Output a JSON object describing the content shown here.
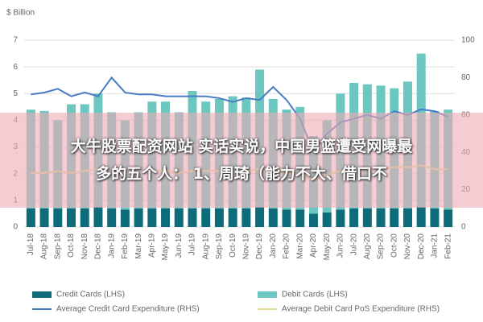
{
  "chart_data": {
    "type": "bar",
    "ylabel": "$ Billion",
    "categories": [
      "Jul-18",
      "Aug-18",
      "Sep-18",
      "Oct-18",
      "Nov-18",
      "Dec-18",
      "Jan-19",
      "Feb-19",
      "Mar-19",
      "Apr-19",
      "May-19",
      "Jun-19",
      "Jul-19",
      "Aug-19",
      "Sep-19",
      "Oct-19",
      "Nov-19",
      "Dec-19",
      "Jan-20",
      "Feb-20",
      "Mar-20",
      "Apr-20",
      "May-20",
      "Jun-20",
      "Jul-20",
      "Aug-20",
      "Sep-20",
      "Oct-20",
      "Nov-20",
      "Dec-20",
      "Jan-21",
      "Feb-21"
    ],
    "series": [
      {
        "name": "Credit Cards (LHS)",
        "color": "#0e6b7a",
        "kind": "bar",
        "values": [
          0.7,
          0.7,
          0.7,
          0.7,
          0.7,
          0.75,
          0.7,
          0.65,
          0.7,
          0.7,
          0.7,
          0.7,
          0.7,
          0.7,
          0.7,
          0.7,
          0.7,
          0.75,
          0.7,
          0.65,
          0.65,
          0.5,
          0.55,
          0.65,
          0.7,
          0.7,
          0.7,
          0.7,
          0.7,
          0.75,
          0.7,
          0.65
        ]
      },
      {
        "name": "Debit Cards (LHS)",
        "color": "#6cc7c1",
        "kind": "bar",
        "values": [
          3.7,
          3.65,
          3.3,
          3.9,
          3.9,
          4.25,
          3.6,
          3.35,
          3.6,
          4.0,
          4.0,
          3.6,
          4.4,
          4.0,
          4.1,
          4.2,
          4.15,
          5.15,
          4.1,
          3.75,
          3.85,
          2.9,
          3.45,
          4.35,
          4.7,
          4.65,
          4.6,
          4.5,
          4.75,
          5.75,
          3.65,
          3.75
        ]
      },
      {
        "name": "Average Credit Card Expenditure (RHS)",
        "color": "#4a7cc4",
        "kind": "line",
        "axis": "y2",
        "values": [
          71,
          72,
          74,
          70,
          72,
          70,
          80,
          72,
          71,
          71,
          70,
          70,
          70,
          70,
          69,
          67,
          69,
          68,
          75,
          68,
          58,
          40,
          50,
          56,
          58,
          60,
          58,
          62,
          60,
          63,
          62,
          59
        ]
      },
      {
        "name": "Average Debit Card PoS Expenditure (RHS)",
        "color": "#e3dd9a",
        "kind": "line",
        "axis": "y2",
        "values": [
          29,
          29,
          30,
          29,
          30,
          31,
          29,
          29,
          29,
          30,
          30,
          29,
          30,
          30,
          30,
          30,
          30,
          31,
          30,
          29,
          28,
          25,
          28,
          30,
          31,
          31,
          31,
          32,
          32,
          33,
          31,
          31
        ]
      }
    ],
    "ylim": [
      0,
      7
    ],
    "yticks": [
      0,
      1,
      2,
      3,
      4,
      5,
      6,
      7
    ],
    "y2lim": [
      0,
      100
    ],
    "y2ticks": [
      0,
      20,
      40,
      60,
      80,
      100
    ],
    "grid": true
  },
  "banner": {
    "lines": [
      "大牛股票配资网站 实话实说，中国男篮遭受网曝最",
      "多的五个人： 1、周琦（能力不大、借口不"
    ]
  }
}
